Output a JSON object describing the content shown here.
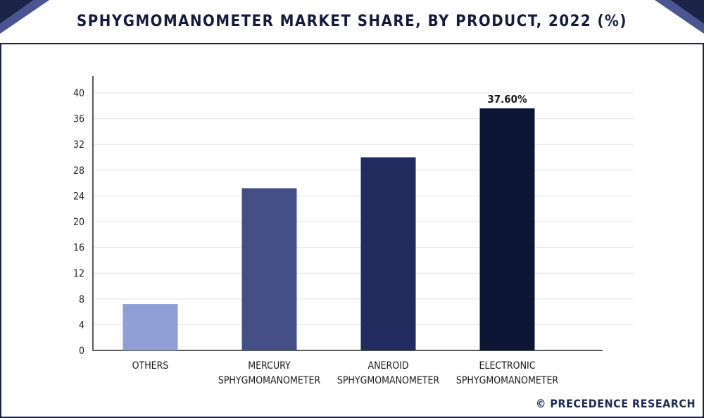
{
  "chart_data": {
    "type": "bar",
    "title": "SPHYGMOMANOMETER MARKET SHARE, BY PRODUCT, 2022 (%)",
    "categories": [
      [
        "OTHERS"
      ],
      [
        "MERCURY",
        "SPHYGMOMANOMETER"
      ],
      [
        "ANEROID",
        "SPHYGMOMANOMETER"
      ],
      [
        "ELECTRONIC",
        "SPHYGMOMANOMETER"
      ]
    ],
    "values": [
      7.2,
      25.2,
      30.0,
      37.6
    ],
    "bar_colors": [
      "#8f9fd6",
      "#444f88",
      "#222b5d",
      "#0d1634"
    ],
    "data_labels": [
      "",
      "",
      "",
      "37.60%"
    ],
    "yticks": [
      0,
      4,
      8,
      12,
      16,
      20,
      24,
      28,
      32,
      36,
      40
    ],
    "ylim": [
      0,
      40
    ],
    "grid": true,
    "xlabel": "",
    "ylabel": ""
  },
  "source": "© PRECEDENCE RESEARCH",
  "colors": {
    "frame": "#1b2348",
    "accent": "#141b3d"
  }
}
